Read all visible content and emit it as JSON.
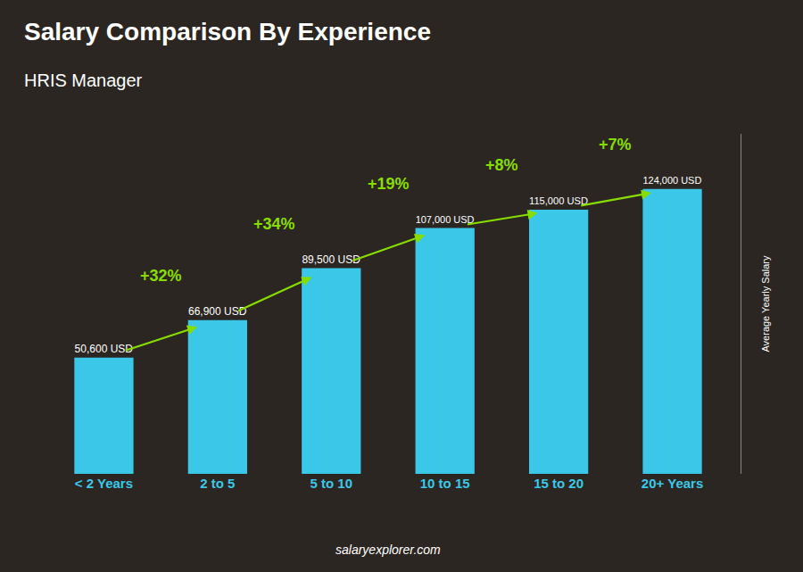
{
  "chart_data": {
    "type": "bar",
    "title": "Salary Comparison By Experience",
    "subtitle": "HRIS Manager",
    "y_label": "Average Yearly Salary",
    "footer": "salaryexplorer.com",
    "categories": [
      "< 2 Years",
      "2 to 5",
      "5 to 10",
      "10 to 15",
      "15 to 20",
      "20+ Years"
    ],
    "values": [
      50600,
      66900,
      89500,
      107000,
      115000,
      124000
    ],
    "value_labels": [
      "50,600 USD",
      "66,900 USD",
      "89,500 USD",
      "107,000 USD",
      "115,000 USD",
      "124,000 USD"
    ],
    "data_labels": true,
    "color": "#3bc8e8",
    "annotations": [
      {
        "text": "+32%",
        "color": "#88dd00"
      },
      {
        "text": "+34%",
        "color": "#88dd00"
      },
      {
        "text": "+19%",
        "color": "#88dd00"
      },
      {
        "text": "+8%",
        "color": "#88dd00"
      },
      {
        "text": "+7%",
        "color": "#88dd00"
      }
    ],
    "ylim": [
      0,
      148000
    ],
    "tick_labels": "x",
    "grid": false
  }
}
